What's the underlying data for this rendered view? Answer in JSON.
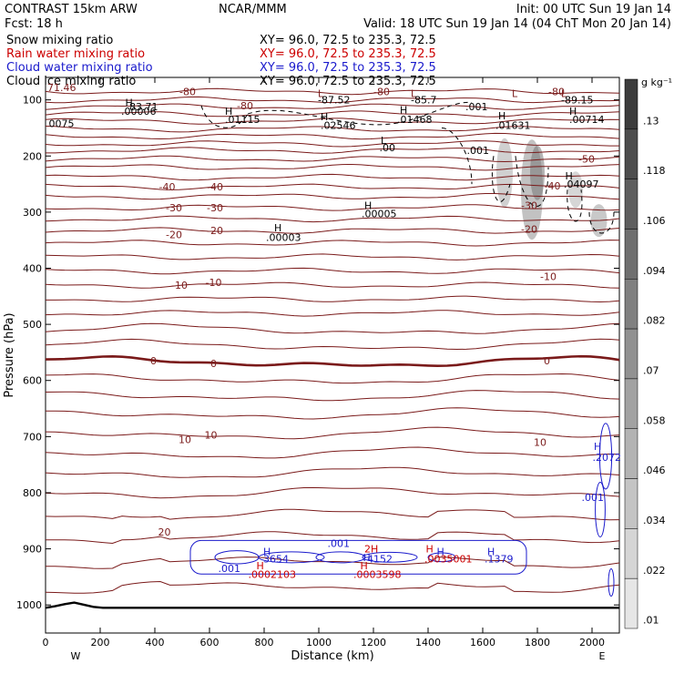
{
  "header": {
    "left1": "CONTRAST 15km ARW",
    "center1": "NCAR/MMM",
    "right1": "Init: 00 UTC Sun 19 Jan 14",
    "left2": "Fcst:   18 h",
    "right2": "Valid: 18 UTC Sun 19 Jan 14 (04 ChT Mon 20 Jan 14)"
  },
  "legend": [
    {
      "name": "Snow mixing ratio",
      "xy": "XY=  96.0, 72.5 to 235.3, 72.5",
      "color": "#000000"
    },
    {
      "name": "Rain water mixing ratio",
      "xy": "XY=  96.0, 72.5 to 235.3, 72.5",
      "color": "#cc0000"
    },
    {
      "name": "Cloud water mixing ratio",
      "xy": "XY=  96.0, 72.5 to 235.3, 72.5",
      "color": "#1a1acc"
    },
    {
      "name": "Cloud ice mixing ratio",
      "xy": "XY=  96.0, 72.5 to 235.3, 72.5",
      "color": "#000000"
    }
  ],
  "chart_data": {
    "type": "contour",
    "xlabel": "Distance (km)",
    "ylabel": "Pressure (hPa)",
    "xlim": [
      0,
      2100
    ],
    "ylim": [
      1050,
      60
    ],
    "x_ticks": [
      0,
      200,
      400,
      600,
      800,
      1000,
      1200,
      1400,
      1600,
      1800,
      2000
    ],
    "y_ticks": [
      100,
      200,
      300,
      400,
      500,
      600,
      700,
      800,
      900,
      1000
    ],
    "x_end_labels": {
      "left": "W",
      "right": "E"
    },
    "temperature_contours": {
      "color": "#7a1a1a",
      "labels": [
        {
          "text": "-80",
          "x": 730,
          "p": 110
        },
        {
          "text": "-80",
          "x": 520,
          "p": 85
        },
        {
          "text": "-80",
          "x": 1230,
          "p": 85
        },
        {
          "text": "-80",
          "x": 1870,
          "p": 85
        },
        {
          "text": "-50",
          "x": 1980,
          "p": 205
        },
        {
          "text": "-40",
          "x": 445,
          "p": 255
        },
        {
          "text": "-40",
          "x": 620,
          "p": 255
        },
        {
          "text": "-40",
          "x": 1855,
          "p": 253
        },
        {
          "text": "-30",
          "x": 470,
          "p": 292
        },
        {
          "text": "-30",
          "x": 620,
          "p": 292
        },
        {
          "text": "-30",
          "x": 1770,
          "p": 288
        },
        {
          "text": "-20",
          "x": 470,
          "p": 340
        },
        {
          "text": "-20",
          "x": 620,
          "p": 333
        },
        {
          "text": "-20",
          "x": 1770,
          "p": 330
        },
        {
          "text": "-10",
          "x": 490,
          "p": 430
        },
        {
          "text": "-10",
          "x": 615,
          "p": 425
        },
        {
          "text": "-10",
          "x": 1840,
          "p": 415
        },
        {
          "text": "0",
          "x": 395,
          "p": 565
        },
        {
          "text": "0",
          "x": 615,
          "p": 570
        },
        {
          "text": "0",
          "x": 1835,
          "p": 565
        },
        {
          "text": "10",
          "x": 510,
          "p": 705
        },
        {
          "text": "10",
          "x": 605,
          "p": 697
        },
        {
          "text": "10",
          "x": 1810,
          "p": 710
        },
        {
          "text": "20",
          "x": 435,
          "p": 870
        }
      ]
    },
    "annotations": [
      {
        "text": "71.46",
        "x": 0,
        "p": 78,
        "color": "#7a1a1a"
      },
      {
        "text": "H",
        "x": 285,
        "p": 105,
        "color": "#000000"
      },
      {
        "text": "83.71",
        "x": 300,
        "p": 112,
        "color": "#000000"
      },
      {
        "text": ".00006",
        "x": 270,
        "p": 120,
        "color": "#000000"
      },
      {
        "text": "0075",
        "x": 5,
        "p": 142,
        "color": "#000000"
      },
      {
        "text": "H",
        "x": 650,
        "p": 120,
        "color": "#000000"
      },
      {
        "text": ".01115",
        "x": 650,
        "p": 135,
        "color": "#000000"
      },
      {
        "text": "L",
        "x": 990,
        "p": 88,
        "color": "#7a1a1a"
      },
      {
        "text": "-87.52",
        "x": 990,
        "p": 100,
        "color": "#000000"
      },
      {
        "text": "H",
        "x": 1000,
        "p": 130,
        "color": "#000000"
      },
      {
        "text": ".02546",
        "x": 1000,
        "p": 145,
        "color": "#000000"
      },
      {
        "text": "L",
        "x": 1330,
        "p": 88,
        "color": "#7a1a1a"
      },
      {
        "text": "-85.7",
        "x": 1330,
        "p": 100,
        "color": "#000000"
      },
      {
        "text": "H",
        "x": 1290,
        "p": 118,
        "color": "#000000"
      },
      {
        "text": ".01468",
        "x": 1280,
        "p": 135,
        "color": "#000000"
      },
      {
        "text": ".001",
        "x": 1530,
        "p": 112,
        "color": "#000000"
      },
      {
        "text": "L",
        "x": 1700,
        "p": 88,
        "color": "#7a1a1a"
      },
      {
        "text": "H",
        "x": 1650,
        "p": 128,
        "color": "#000000"
      },
      {
        "text": ".01631",
        "x": 1640,
        "p": 145,
        "color": "#000000"
      },
      {
        "text": "L",
        "x": 1880,
        "p": 88,
        "color": "#7a1a1a"
      },
      {
        "text": "-89.15",
        "x": 1880,
        "p": 100,
        "color": "#000000"
      },
      {
        "text": "H",
        "x": 1910,
        "p": 120,
        "color": "#000000"
      },
      {
        "text": ".00714",
        "x": 1910,
        "p": 135,
        "color": "#000000"
      },
      {
        "text": "L",
        "x": 1220,
        "p": 172,
        "color": "#000000"
      },
      {
        "text": ".00",
        "x": 1215,
        "p": 185,
        "color": "#000000"
      },
      {
        "text": ".001",
        "x": 1535,
        "p": 190,
        "color": "#000000"
      },
      {
        "text": "H",
        "x": 1895,
        "p": 235,
        "color": "#000000"
      },
      {
        "text": ".04097",
        "x": 1890,
        "p": 250,
        "color": "#000000"
      },
      {
        "text": "H",
        "x": 1160,
        "p": 288,
        "color": "#000000"
      },
      {
        "text": ".00005",
        "x": 1150,
        "p": 303,
        "color": "#000000"
      },
      {
        "text": "H",
        "x": 830,
        "p": 328,
        "color": "#000000"
      },
      {
        "text": ".00003",
        "x": 800,
        "p": 345,
        "color": "#000000"
      },
      {
        "text": "H",
        "x": 2000,
        "p": 717,
        "color": "#1a1acc"
      },
      {
        "text": ".2072",
        "x": 1995,
        "p": 737,
        "color": "#1a1acc"
      },
      {
        "text": ".001",
        "x": 1955,
        "p": 808,
        "color": "#1a1acc"
      },
      {
        "text": ".001",
        "x": 1025,
        "p": 890,
        "color": "#1a1acc"
      },
      {
        "text": "H",
        "x": 790,
        "p": 905,
        "color": "#1a1acc"
      },
      {
        "text": "3654",
        "x": 790,
        "p": 918,
        "color": "#1a1acc"
      },
      {
        "text": "H",
        "x": 765,
        "p": 930,
        "color": "#cc0000"
      },
      {
        "text": ".0002103",
        "x": 735,
        "p": 945,
        "color": "#cc0000"
      },
      {
        "text": "H",
        "x": 1145,
        "p": 930,
        "color": "#cc0000"
      },
      {
        "text": ".0003598",
        "x": 1120,
        "p": 945,
        "color": "#cc0000"
      },
      {
        "text": "H",
        "x": 1155,
        "p": 915,
        "color": "#1a1acc"
      },
      {
        "text": "4152",
        "x": 1170,
        "p": 918,
        "color": "#1a1acc"
      },
      {
        "text": "2H",
        "x": 1160,
        "p": 900,
        "color": "#cc0000"
      },
      {
        "text": "H",
        "x": 1425,
        "p": 905,
        "color": "#1a1acc"
      },
      {
        "text": "H",
        "x": 1385,
        "p": 900,
        "color": "#cc0000"
      },
      {
        "text": ".0035001",
        "x": 1380,
        "p": 918,
        "color": "#cc0000"
      },
      {
        "text": "H",
        "x": 1610,
        "p": 905,
        "color": "#1a1acc"
      },
      {
        "text": ".1379",
        "x": 1600,
        "p": 918,
        "color": "#1a1acc"
      },
      {
        "text": ".001",
        "x": 625,
        "p": 935,
        "color": "#1a1acc"
      }
    ],
    "colorbar": {
      "unit": "g kg⁻¹",
      "labels": [
        ".13",
        ".118",
        ".106",
        ".094",
        ".082",
        ".07",
        ".058",
        ".046",
        ".034",
        ".022",
        ".01"
      ]
    }
  }
}
